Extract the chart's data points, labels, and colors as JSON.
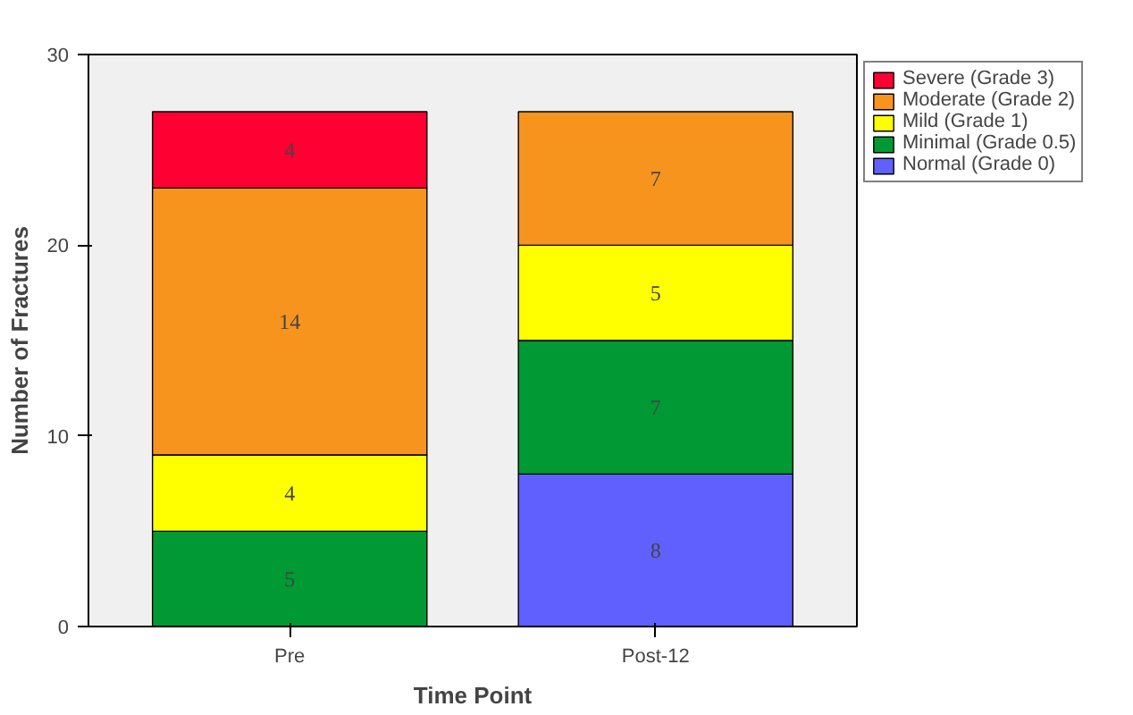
{
  "chart_data": {
    "type": "bar",
    "stacked": true,
    "xlabel": "Time Point",
    "ylabel": "Number of Fractures",
    "categories": [
      "Pre",
      "Post-12"
    ],
    "ylim": [
      0,
      30
    ],
    "yticks": [
      0,
      10,
      20,
      30
    ],
    "grid": false,
    "legend": "right",
    "data_labels": true,
    "series": [
      {
        "name": "Normal (Grade 0)",
        "color": "#6060ff",
        "values": [
          null,
          8
        ]
      },
      {
        "name": "Minimal (Grade 0.5)",
        "color": "#009933",
        "values": [
          5,
          7
        ]
      },
      {
        "name": "Mild (Grade 1)",
        "color": "#ffff00",
        "values": [
          4,
          5
        ]
      },
      {
        "name": "Moderate (Grade 2)",
        "color": "#f7941d",
        "values": [
          14,
          7
        ]
      },
      {
        "name": "Severe (Grade 3)",
        "color": "#ff0033",
        "values": [
          4,
          null
        ]
      }
    ]
  }
}
